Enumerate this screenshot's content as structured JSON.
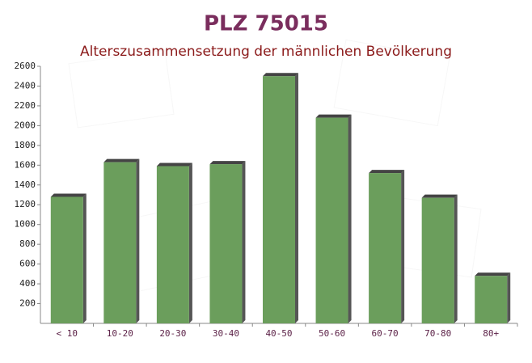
{
  "chart_data": {
    "type": "bar",
    "title": "PLZ 75015",
    "subtitle": "Alterszusammensetzung der männlichen Bevölkerung",
    "categories": [
      "< 10",
      "10-20",
      "20-30",
      "30-40",
      "40-50",
      "50-60",
      "60-70",
      "70-80",
      "80+"
    ],
    "values": [
      1280,
      1630,
      1590,
      1610,
      2500,
      2080,
      1520,
      1270,
      480
    ],
    "color": "#6b9e5c",
    "ylim": [
      0,
      2600
    ],
    "yticks": [
      200,
      400,
      600,
      800,
      1000,
      1200,
      1400,
      1600,
      1800,
      2000,
      2200,
      2400,
      2600
    ]
  }
}
